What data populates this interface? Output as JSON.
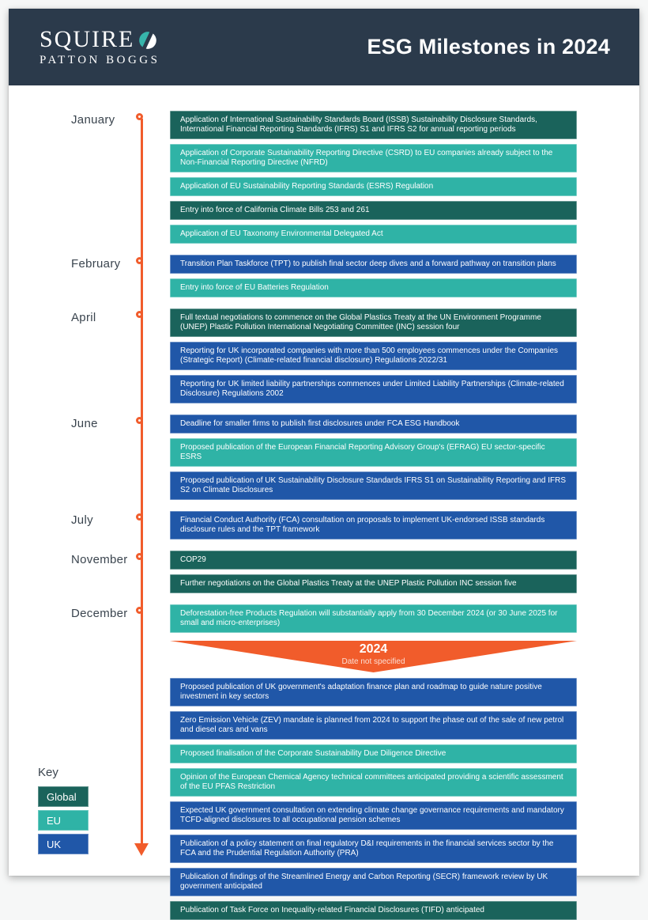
{
  "page": {
    "header": {
      "logo_line1": "SQUIRE",
      "logo_line2": "PATTON BOGGS",
      "title": "ESG Milestones in 2024"
    },
    "colors": {
      "header_bg": "#2B3A4B",
      "global": "#1A635B",
      "eu": "#2FB3A6",
      "uk": "#2057A8",
      "orange": "#F15C2B",
      "month_text": "#3A444E"
    },
    "timeline": {
      "sections": [
        {
          "month": "January",
          "items": [
            {
              "region": "global",
              "text": "Application of International Sustainability Standards Board (ISSB) Sustainability Disclosure Standards, International Financial Reporting Standards (IFRS) S1 and IFRS S2 for annual reporting periods"
            },
            {
              "region": "eu",
              "text": "Application of Corporate Sustainability Reporting Directive (CSRD) to EU companies already subject to the Non-Financial Reporting Directive (NFRD)"
            },
            {
              "region": "eu",
              "text": "Application of EU Sustainability Reporting Standards (ESRS) Regulation"
            },
            {
              "region": "global",
              "text": "Entry into force of California Climate Bills 253 and 261"
            },
            {
              "region": "eu",
              "text": "Application of EU Taxonomy Environmental Delegated Act"
            }
          ]
        },
        {
          "month": "February",
          "items": [
            {
              "region": "uk",
              "text": "Transition Plan Taskforce (TPT) to publish final sector deep dives and a forward pathway on transition plans"
            },
            {
              "region": "eu",
              "text": "Entry into force of EU Batteries Regulation"
            }
          ]
        },
        {
          "month": "April",
          "items": [
            {
              "region": "global",
              "text": "Full textual negotiations to commence on the Global Plastics Treaty at the UN Environment Programme (UNEP) Plastic Pollution International Negotiating Committee (INC) session four"
            },
            {
              "region": "uk",
              "text": "Reporting for UK incorporated companies with more than 500 employees commences under the Companies (Strategic Report) (Climate-related financial disclosure) Regulations 2022/31"
            },
            {
              "region": "uk",
              "text": "Reporting for UK limited liability partnerships commences under Limited Liability Partnerships (Climate-related Disclosure) Regulations 2002"
            }
          ]
        },
        {
          "month": "June",
          "items": [
            {
              "region": "uk",
              "text": "Deadline for smaller firms to publish first disclosures under FCA ESG Handbook"
            },
            {
              "region": "eu",
              "text": "Proposed publication of the European Financial Reporting Advisory Group's (EFRAG) EU sector-specific ESRS"
            },
            {
              "region": "uk",
              "text": "Proposed publication of UK Sustainability Disclosure Standards IFRS S1 on Sustainability Reporting and IFRS S2 on Climate Disclosures"
            }
          ]
        },
        {
          "month": "July",
          "items": [
            {
              "region": "uk",
              "text": "Financial Conduct Authority (FCA) consultation on proposals to implement UK-endorsed ISSB standards disclosure rules and the TPT framework"
            }
          ]
        },
        {
          "month": "November",
          "items": [
            {
              "region": "global",
              "text": "COP29"
            },
            {
              "region": "global",
              "text": "Further negotiations on the Global Plastics Treaty at the UNEP Plastic Pollution INC session five"
            }
          ]
        },
        {
          "month": "December",
          "items": [
            {
              "region": "eu",
              "text": "Deforestation-free Products Regulation will substantially apply from 30 December 2024 (or 30 June 2025 for small and micro-enterprises)"
            }
          ]
        }
      ],
      "undated": {
        "banner": {
          "year": "2024",
          "note": "Date not specified"
        },
        "items": [
          {
            "region": "uk",
            "text": "Proposed publication of UK government's adaptation finance plan and roadmap to guide nature positive investment in key sectors"
          },
          {
            "region": "uk",
            "text": "Zero Emission Vehicle (ZEV) mandate is planned from 2024 to support the phase out of the sale of new petrol and diesel cars and vans"
          },
          {
            "region": "eu",
            "text": "Proposed finalisation of the Corporate Sustainability Due Diligence Directive"
          },
          {
            "region": "eu",
            "text": "Opinion of the European Chemical Agency technical committees anticipated providing a scientific assessment of the EU PFAS Restriction"
          },
          {
            "region": "uk",
            "text": "Expected UK government consultation on extending climate change governance requirements and mandatory TCFD-aligned disclosures to all occupational pension schemes"
          },
          {
            "region": "uk",
            "text": "Publication of a policy statement on final regulatory D&I requirements in the financial services sector by the FCA and the Prudential Regulation Authority (PRA)"
          },
          {
            "region": "uk",
            "text": "Publication of findings of the Streamlined Energy and Carbon Reporting (SECR) framework review by UK government anticipated"
          },
          {
            "region": "global",
            "text": "Publication of Task Force on Inequality-related Financial Disclosures (TIFD) anticipated"
          }
        ]
      }
    },
    "key": {
      "label": "Key",
      "entries": [
        {
          "region": "global",
          "label": "Global"
        },
        {
          "region": "eu",
          "label": "EU"
        },
        {
          "region": "uk",
          "label": "UK"
        }
      ]
    }
  }
}
